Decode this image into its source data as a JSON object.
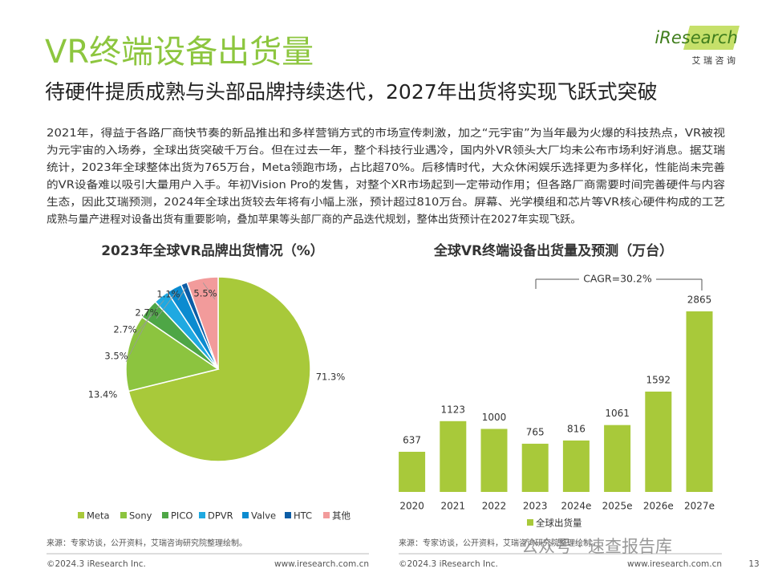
{
  "slide": {
    "title": "VR终端设备出货量",
    "subtitle": "待硬件提质成熟与头部品牌持续迭代，2027年出货将实现飞跃式突破",
    "paragraph": [
      "2021年，得益于各路厂商快节奏的新品推出和多样营销方式的市场宣传刺激，加之“元宇宙”为当年最为火爆的科技热点，VR被视",
      "为元宇宙的入场券，全球出货突破千万台。但在过去一年，整个科技行业遇冷，国内外VR领头大厂均未公布市场利好消息。据艾瑞",
      "统计，2023年全球整体出货为765万台，Meta领跑市场，占比超70%。后移情时代，大众休闲娱乐选择更为多样化，性能尚未完善",
      "的VR设备难以吸引大量用户入手。年初Vision Pro的发售，对整个XR市场起到一定带动作用；但各路厂商需要时间完善硬件与内容",
      "生态，因此艾瑞预测，2024年全球出货较去年将有小幅上涨，预计超过810万台。屏幕、光学模组和芯片等VR核心硬件构成的工艺",
      "成熟与量产进程对设备出货有重要影响，叠加苹果等头部厂商的产品迭代规划，整体出货预计在2027年实现飞跃。"
    ],
    "logo": "iResearch",
    "logo_sub": "艾 瑞 咨 询",
    "source_left": "来源：专家访谈，公开资料，艾瑞咨询研究院整理绘制。",
    "source_right": "来源：专家访谈，公开资料，艾瑞咨询研究院整理绘制。",
    "copyright_left": "©2024.3 iResearch Inc.",
    "website_left": "www.iresearch.com.cn",
    "copyright_right": "©2024.3 iResearch Inc.",
    "website_right": "www.iresearch.com.cn",
    "page_number": "13",
    "watermark": "公众号 · 速查报告库"
  },
  "chart_data": [
    {
      "type": "pie",
      "title": "2023年全球VR品牌出货情况（%）",
      "categories": [
        "Meta",
        "Sony",
        "PICO",
        "DPVR",
        "Valve",
        "HTC",
        "其他"
      ],
      "values": [
        71.3,
        13.4,
        3.5,
        2.7,
        2.7,
        1.1,
        5.5
      ],
      "value_labels": [
        "71.3%",
        "13.4%",
        "3.5%",
        "2.7%",
        "2.7%",
        "1.1%",
        "5.5%"
      ],
      "colors": [
        "#a8c93a",
        "#8cc43f",
        "#4ea646",
        "#1fa9e1",
        "#0b8bd0",
        "#0c5da6",
        "#f29b9b"
      ]
    },
    {
      "type": "bar",
      "title": "全球VR终端设备出货量及预测（万台）",
      "categories": [
        "2020",
        "2021",
        "2022",
        "2023",
        "2024e",
        "2025e",
        "2026e",
        "2027e"
      ],
      "series": [
        {
          "name": "全球出货量",
          "color": "#a8c93a",
          "values": [
            637,
            1123,
            1000,
            765,
            816,
            1061,
            1592,
            2865
          ]
        }
      ],
      "annotation": "CAGR=30.2%"
    }
  ]
}
